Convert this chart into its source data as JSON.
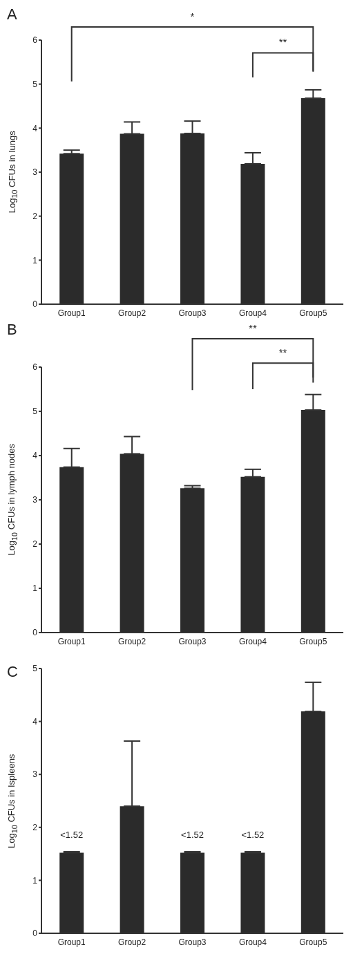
{
  "chart_data": [
    {
      "type": "bar",
      "title": "A",
      "ylabel": "Log$_{10}$ CFUs in lungs",
      "categories": [
        "Group1",
        "Group2",
        "Group3",
        "Group4",
        "Group5"
      ],
      "values": [
        3.42,
        3.87,
        3.88,
        3.19,
        4.68
      ],
      "errors": [
        0.08,
        0.27,
        0.28,
        0.25,
        0.19
      ],
      "color": "#2b2b2b",
      "ylim": [
        0,
        6
      ],
      "yticks": [
        0,
        1,
        2,
        3,
        4,
        5,
        6
      ],
      "grid": false,
      "legend": false,
      "annotations": [
        "*",
        "**"
      ]
    },
    {
      "type": "bar",
      "title": "B",
      "ylabel": "Log$_{10}$ CFUs in lymph nodes",
      "categories": [
        "Group1",
        "Group2",
        "Group3",
        "Group4",
        "Group5"
      ],
      "values": [
        3.74,
        4.04,
        3.26,
        3.52,
        5.03
      ],
      "errors": [
        0.42,
        0.39,
        0.06,
        0.17,
        0.35
      ],
      "color": "#2b2b2b",
      "ylim": [
        0,
        6
      ],
      "yticks": [
        0,
        1,
        2,
        3,
        4,
        5,
        6
      ],
      "grid": false,
      "legend": false,
      "annotations": [
        "**",
        "**"
      ]
    },
    {
      "type": "bar",
      "title": "C",
      "ylabel": "Log$_{10}$ CFUs in Ispleens",
      "categories": [
        "Group1",
        "Group2",
        "Group3",
        "Group4",
        "Group5"
      ],
      "values": [
        1.52,
        2.4,
        1.52,
        1.52,
        4.19
      ],
      "errors": [
        0.02,
        1.23,
        0.02,
        0.02,
        0.55
      ],
      "value_labels": [
        "<1.52",
        null,
        "<1.52",
        "<1.52",
        null
      ],
      "color": "#2b2b2b",
      "ylim": [
        0,
        5
      ],
      "yticks": [
        0,
        1,
        2,
        3,
        4,
        5
      ],
      "grid": false,
      "legend": false
    }
  ]
}
